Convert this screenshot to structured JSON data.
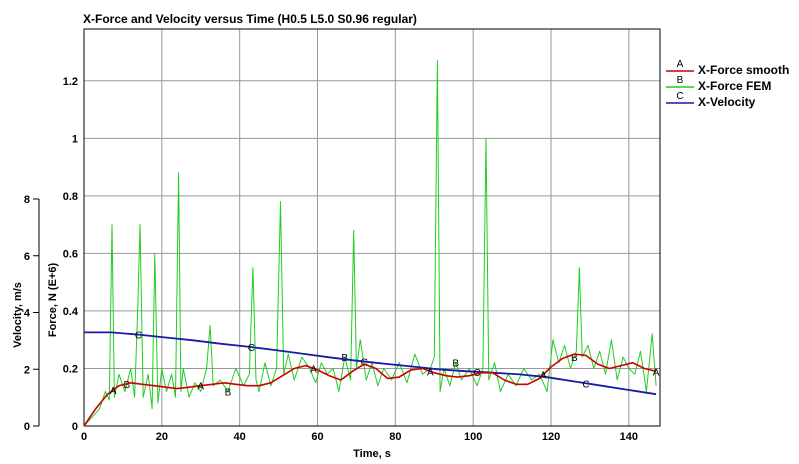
{
  "chart_data": {
    "type": "line",
    "title": "X-Force and Velocity versus Time (H0.5 L5.0 S0.96 regular)",
    "xlabel": "Time, s",
    "ylabel_force": "Force, N (E+6)",
    "ylabel_velocity": "Velocity, m/s",
    "xlim": [
      0,
      148
    ],
    "ylim_force": [
      0,
      1.38
    ],
    "ylim_velocity": [
      0,
      8
    ],
    "x_ticks": [
      "0",
      "20",
      "40",
      "60",
      "80",
      "100",
      "120",
      "140"
    ],
    "force_ticks": [
      "0",
      "0.2",
      "0.4",
      "0.6",
      "0.8",
      "1",
      "1.2"
    ],
    "velocity_ticks": [
      "0",
      "2",
      "4",
      "6",
      "8"
    ],
    "grid": true,
    "legend_position": "right",
    "series": [
      {
        "name": "X-Force smooth",
        "marker": "A",
        "color": "#cc0000",
        "axis": "force",
        "x": [
          0,
          3,
          6,
          9,
          12,
          15,
          18,
          21,
          24,
          27,
          30,
          33,
          36,
          39,
          42,
          45,
          48,
          51,
          54,
          57,
          60,
          63,
          66,
          69,
          72,
          75,
          78,
          81,
          84,
          87,
          90,
          93,
          96,
          99,
          102,
          105,
          108,
          111,
          114,
          117,
          120,
          123,
          126,
          129,
          132,
          135,
          138,
          141,
          144,
          147
        ],
        "y": [
          0.0,
          0.06,
          0.11,
          0.14,
          0.15,
          0.145,
          0.14,
          0.135,
          0.13,
          0.135,
          0.14,
          0.145,
          0.15,
          0.145,
          0.14,
          0.14,
          0.15,
          0.175,
          0.2,
          0.21,
          0.195,
          0.175,
          0.16,
          0.19,
          0.215,
          0.2,
          0.165,
          0.17,
          0.195,
          0.2,
          0.185,
          0.175,
          0.17,
          0.175,
          0.185,
          0.185,
          0.16,
          0.145,
          0.145,
          0.165,
          0.205,
          0.235,
          0.25,
          0.245,
          0.215,
          0.2,
          0.21,
          0.22,
          0.2,
          0.19
        ],
        "markers_x": [
          7.5,
          30,
          59,
          89,
          118,
          147
        ]
      },
      {
        "name": "X-Force FEM",
        "marker": "B",
        "color": "#22cc22",
        "axis": "force",
        "x": [
          0,
          2,
          4,
          5.5,
          6.5,
          7.2,
          7.8,
          9,
          10.5,
          12,
          13,
          13.8,
          14.4,
          15.2,
          16.5,
          17.5,
          18.2,
          19,
          20,
          21.2,
          22.5,
          23.5,
          24.3,
          24.9,
          25.5,
          27,
          28.5,
          30,
          31.5,
          32.4,
          33.2,
          35,
          37,
          39,
          41,
          42.5,
          43.4,
          44.2,
          45,
          46.5,
          48,
          49.5,
          50.5,
          51.3,
          52.5,
          54,
          56,
          58,
          59.5,
          61,
          62.5,
          64,
          65.5,
          67,
          68.5,
          69.3,
          70,
          71,
          72.5,
          74,
          75.5,
          77,
          79,
          81,
          83,
          85,
          87,
          89,
          90,
          90.8,
          91.5,
          92.5,
          94,
          95.5,
          97,
          99,
          101,
          102.5,
          103.3,
          104,
          105.5,
          107,
          109,
          111,
          113,
          115,
          117,
          119,
          120.5,
          122,
          123.5,
          125,
          126.5,
          127.3,
          128,
          129.5,
          131,
          132.5,
          134,
          135.5,
          137,
          138.5,
          140,
          141.5,
          143,
          144.5,
          146,
          147
        ],
        "y": [
          0.0,
          0.03,
          0.06,
          0.12,
          0.09,
          0.7,
          0.1,
          0.18,
          0.12,
          0.2,
          0.1,
          0.4,
          0.7,
          0.1,
          0.18,
          0.06,
          0.6,
          0.08,
          0.2,
          0.12,
          0.18,
          0.1,
          0.88,
          0.12,
          0.2,
          0.1,
          0.15,
          0.12,
          0.2,
          0.35,
          0.14,
          0.16,
          0.12,
          0.2,
          0.14,
          0.18,
          0.55,
          0.16,
          0.12,
          0.22,
          0.14,
          0.2,
          0.78,
          0.18,
          0.25,
          0.16,
          0.24,
          0.2,
          0.15,
          0.22,
          0.18,
          0.2,
          0.12,
          0.24,
          0.16,
          0.68,
          0.2,
          0.3,
          0.16,
          0.22,
          0.14,
          0.2,
          0.16,
          0.22,
          0.15,
          0.25,
          0.18,
          0.2,
          0.24,
          1.27,
          0.12,
          0.2,
          0.14,
          0.22,
          0.16,
          0.2,
          0.14,
          0.2,
          1.0,
          0.16,
          0.22,
          0.12,
          0.18,
          0.14,
          0.2,
          0.16,
          0.18,
          0.12,
          0.3,
          0.22,
          0.28,
          0.2,
          0.26,
          0.55,
          0.24,
          0.28,
          0.2,
          0.26,
          0.18,
          0.3,
          0.16,
          0.24,
          0.2,
          0.18,
          0.26,
          0.12,
          0.32,
          0.14
        ],
        "markers_x": [
          11,
          37,
          67,
          95.5,
          126
        ]
      },
      {
        "name": "X-Velocity",
        "marker": "C",
        "color": "#1a1aa8",
        "axis": "velocity",
        "x": [
          0,
          7,
          14,
          21,
          28,
          35,
          42,
          49,
          56,
          63,
          70,
          77,
          84,
          91,
          98,
          105,
          112,
          119,
          126,
          133,
          140,
          147
        ],
        "y": [
          3.3,
          3.3,
          3.22,
          3.12,
          3.02,
          2.9,
          2.8,
          2.68,
          2.55,
          2.42,
          2.3,
          2.2,
          2.1,
          2.0,
          1.93,
          1.88,
          1.82,
          1.72,
          1.57,
          1.42,
          1.27,
          1.12
        ],
        "markers_x": [
          14,
          43,
          72,
          101,
          129
        ]
      }
    ]
  }
}
